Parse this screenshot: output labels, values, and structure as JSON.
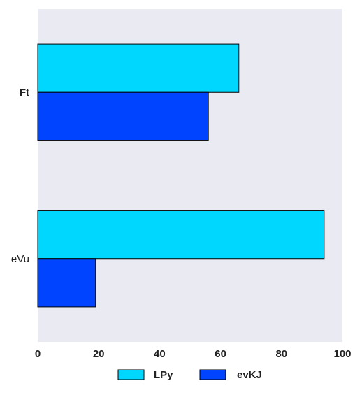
{
  "chart_data": {
    "type": "bar",
    "orientation": "horizontal",
    "categories": [
      "Ft",
      "eVu"
    ],
    "series": [
      {
        "name": "LPy",
        "values": [
          66,
          94
        ],
        "color": "#00d7ff"
      },
      {
        "name": "evKJ",
        "values": [
          56,
          19
        ],
        "color": "#0044ff"
      }
    ],
    "title": "",
    "xlabel": "",
    "ylabel": "",
    "xlim": [
      0,
      100
    ],
    "x_ticks": [
      "0",
      "20",
      "40",
      "60",
      "80",
      "100"
    ],
    "grid": false,
    "legend": "bottom-center",
    "background_color": "#eaeaf2"
  }
}
